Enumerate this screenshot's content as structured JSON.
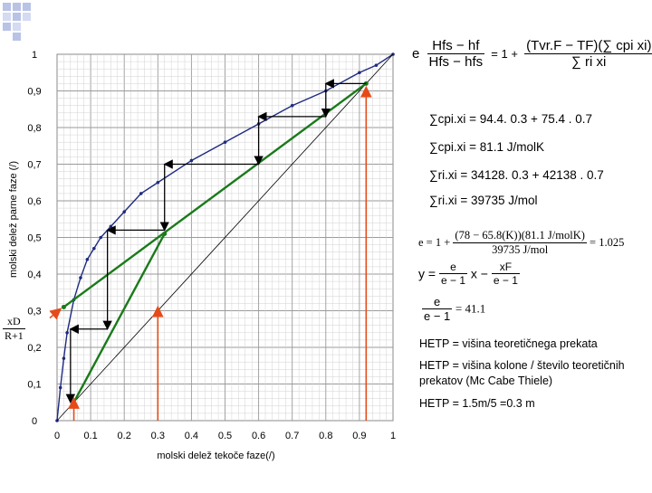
{
  "slide": {
    "main_equation": {
      "lhs": "e",
      "frac1_num": "Hfs − hf",
      "frac1_den": "Hfs − hfs",
      "rhs_one": "= 1 +",
      "frac2_num": "(Tvr.F − TF)(∑ cpi xi)",
      "frac2_den": "∑ ri xi"
    },
    "calc_lines": [
      "∑cpi.xi = 94.4. 0.3 + 75.4 . 0.7",
      "∑cpi.xi = 81.1 J/molK",
      "∑ri.xi = 34128. 0.3 + 42138 . 0.7",
      "∑ri.xi = 39735 J/mol"
    ],
    "e_calc": {
      "lhs": "e = 1 +",
      "num": "(78 − 65.8(K))(81.1 J/molK)",
      "den": "39735 J/mol",
      "result": "= 1.025"
    },
    "q_line": {
      "y": "y =",
      "c1_num": "e",
      "c1_den": "e − 1",
      "x": "x −",
      "c2_num": "xF",
      "c2_den": "e − 1"
    },
    "slope": {
      "num": "e",
      "den": "e − 1",
      "result": "= 41.1"
    },
    "hetp_lines": [
      "HETP = višina teoretičnega prekata",
      "HETP = višina kolone / število teoretičnih prekatov (Mc Cabe Thiele)",
      "HETP = 1.5m/5 =0.3 m"
    ],
    "intercept_label": {
      "num": "xD",
      "den": "R+1"
    }
  },
  "chart_data": {
    "type": "line",
    "xlabel": "molski delež tekoče faze(/)",
    "ylabel": "molski delež parne faze (/)",
    "xlim": [
      0,
      1
    ],
    "ylim": [
      0,
      1
    ],
    "x_ticks": [
      "0",
      "0.1",
      "0.2",
      "0.3",
      "0.4",
      "0.5",
      "0.6",
      "0.7",
      "0.8",
      "0.9",
      "1"
    ],
    "y_ticks": [
      "0",
      "0,1",
      "0,2",
      "0,3",
      "0,4",
      "0,5",
      "0,6",
      "0,7",
      "0,8",
      "0,9",
      "1"
    ],
    "grid": true,
    "series": [
      {
        "role": "equilibrium",
        "color": "#1f2a80",
        "x": [
          0,
          0.01,
          0.02,
          0.03,
          0.05,
          0.07,
          0.09,
          0.11,
          0.13,
          0.16,
          0.2,
          0.25,
          0.3,
          0.4,
          0.5,
          0.6,
          0.7,
          0.8,
          0.9,
          0.95,
          1.0
        ],
        "y": [
          0,
          0.09,
          0.17,
          0.24,
          0.33,
          0.39,
          0.44,
          0.47,
          0.5,
          0.53,
          0.57,
          0.62,
          0.65,
          0.71,
          0.76,
          0.81,
          0.86,
          0.9,
          0.95,
          0.97,
          1.0
        ]
      },
      {
        "role": "diagonal",
        "color": "#000000",
        "x": [
          0,
          1
        ],
        "y": [
          0,
          1
        ]
      },
      {
        "role": "rectifying",
        "color": "#1a7a1a",
        "x": [
          0.02,
          0.92
        ],
        "y": [
          0.31,
          0.92
        ]
      },
      {
        "role": "stripping",
        "color": "#1a7a1a",
        "x": [
          0.05,
          0.32
        ],
        "y": [
          0.05,
          0.51
        ]
      }
    ],
    "steps": [
      [
        0.92,
        0.92
      ],
      [
        0.8,
        0.92
      ],
      [
        0.8,
        0.83
      ],
      [
        0.6,
        0.83
      ],
      [
        0.6,
        0.7
      ],
      [
        0.32,
        0.7
      ],
      [
        0.32,
        0.52
      ],
      [
        0.15,
        0.52
      ],
      [
        0.15,
        0.25
      ],
      [
        0.04,
        0.25
      ],
      [
        0.04,
        0.05
      ]
    ],
    "markers": {
      "color": "#e64a19",
      "vertical_at_x": [
        0.05,
        0.3,
        0.92
      ],
      "intercept_y": 0.31
    }
  }
}
